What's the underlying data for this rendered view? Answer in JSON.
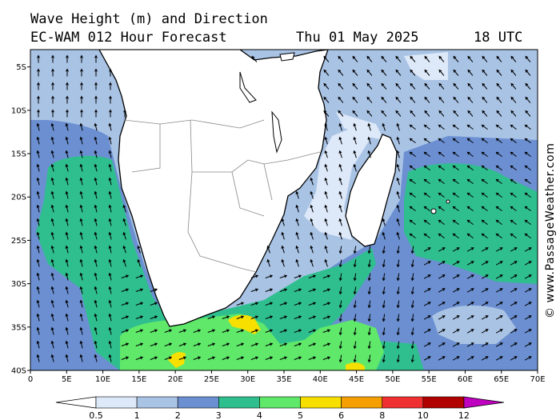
{
  "header": {
    "title_line1": "Wave Height (m) and Direction",
    "title_line2": "EC-WAM 012 Hour Forecast",
    "date": "Thu 01 May 2025",
    "time": "18 UTC"
  },
  "map": {
    "lon_range": [
      0,
      70
    ],
    "lat_range": [
      -3,
      -40
    ],
    "lat_ticks": [
      "5S",
      "10S",
      "15S",
      "20S",
      "25S",
      "30S",
      "35S",
      "40S"
    ],
    "lat_tick_values": [
      -5,
      -10,
      -15,
      -20,
      -25,
      -30,
      -35,
      -40
    ],
    "lon_ticks": [
      "0",
      "5E",
      "10E",
      "15E",
      "20E",
      "25E",
      "30E",
      "35E",
      "40E",
      "45E",
      "50E",
      "55E",
      "60E",
      "65E",
      "70E"
    ],
    "lon_tick_values": [
      0,
      5,
      10,
      15,
      20,
      25,
      30,
      35,
      40,
      45,
      50,
      55,
      60,
      65,
      70
    ],
    "land_color": "#ffffff",
    "arrow_color": "#000000"
  },
  "colorbar": {
    "labels": [
      "0.5",
      "1",
      "2",
      "3",
      "4",
      "5",
      "6",
      "8",
      "10",
      "12"
    ],
    "colors": [
      "#dde8f8",
      "#a9c3e5",
      "#6b8fd1",
      "#2fbf8f",
      "#5fe86a",
      "#f7e000",
      "#f5a000",
      "#f03030",
      "#b00000",
      "#c000c0"
    ],
    "under_color": "#ffffff"
  },
  "copyright": "© www.PassageWeather.com"
}
